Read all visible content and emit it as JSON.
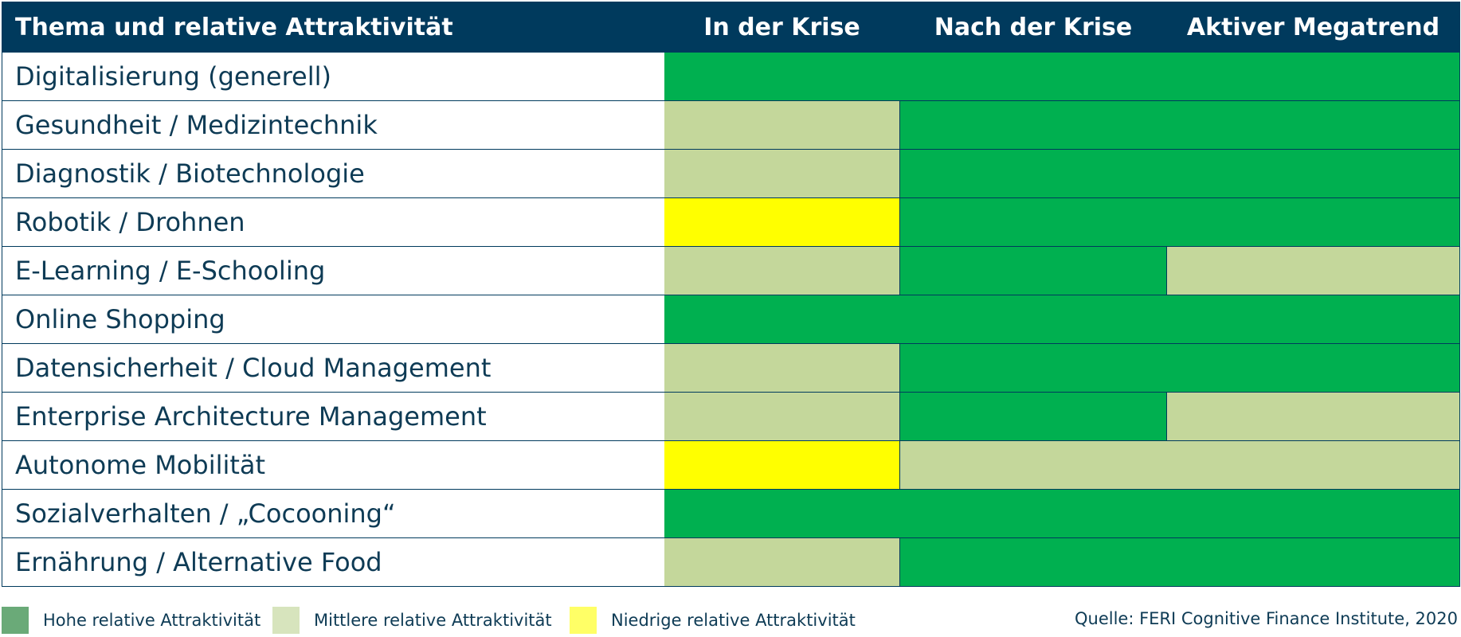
{
  "chart_data": {
    "type": "table",
    "header": {
      "topic": "Thema und relative Attraktivität",
      "columns": [
        "In der Krise",
        "Nach der Krise",
        "Aktiver Megatrend"
      ]
    },
    "rows": [
      {
        "topic": "Digitalisierung (generell)",
        "ratings": [
          "hoch",
          "hoch",
          "hoch"
        ]
      },
      {
        "topic": "Gesundheit / Medizintechnik",
        "ratings": [
          "mittel",
          "hoch",
          "hoch"
        ]
      },
      {
        "topic": "Diagnostik / Biotechnologie",
        "ratings": [
          "mittel",
          "hoch",
          "hoch"
        ]
      },
      {
        "topic": "Robotik / Drohnen",
        "ratings": [
          "niedrig",
          "hoch",
          "hoch"
        ]
      },
      {
        "topic": "E-Learning / E-Schooling",
        "ratings": [
          "mittel",
          "hoch",
          "mittel"
        ]
      },
      {
        "topic": "Online Shopping",
        "ratings": [
          "hoch",
          "hoch",
          "hoch"
        ]
      },
      {
        "topic": "Datensicherheit / Cloud Management",
        "ratings": [
          "mittel",
          "hoch",
          "hoch"
        ]
      },
      {
        "topic": "Enterprise Architecture Management",
        "ratings": [
          "mittel",
          "hoch",
          "mittel"
        ]
      },
      {
        "topic": "Autonome Mobilität",
        "ratings": [
          "niedrig",
          "mittel",
          "mittel"
        ]
      },
      {
        "topic": "Sozialverhalten / „Cocooning“",
        "ratings": [
          "hoch",
          "hoch",
          "hoch"
        ]
      },
      {
        "topic": "Ernährung / Alternative Food",
        "ratings": [
          "mittel",
          "hoch",
          "hoch"
        ]
      }
    ],
    "levels": {
      "hoch": {
        "label": "Hohe relative Attraktivität",
        "cell_color": "#00b050",
        "legend_color": "#6aaa78"
      },
      "mittel": {
        "label": "Mittlere relative Attraktivität",
        "cell_color": "#c4d79b",
        "legend_color": "#d7e4bd"
      },
      "niedrig": {
        "label": "Niedrige relative Attraktivität",
        "cell_color": "#ffff00",
        "legend_color": "#ffff66"
      }
    },
    "legend": [
      "hoch",
      "mittel",
      "niedrig"
    ]
  },
  "source": "Quelle: FERI Cognitive Finance Institute, 2020",
  "colors": {
    "header_bg": "#003a5d",
    "header_text": "#ffffff",
    "text": "#0e3b55",
    "grid": "#003a5d"
  }
}
